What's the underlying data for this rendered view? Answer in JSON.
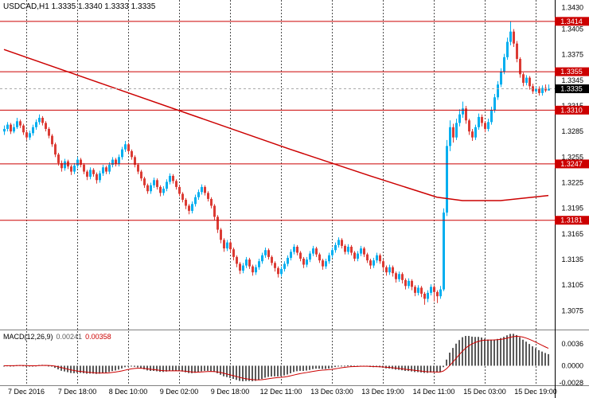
{
  "title": {
    "symbol": "USDCAD,H1",
    "values": "1.3335 1.3340 1.3333 1.3335"
  },
  "colors": {
    "up": "#00AEEF",
    "down": "#DB3B34",
    "line": "#CC0000",
    "grid": "#4d4d4d",
    "hist": "#5a5a5a",
    "separator": "#808080",
    "axis_line": "#000000",
    "bid_tag": "#000000",
    "bg": "#FFFFFF"
  },
  "chart_data": {
    "type": "candlestick",
    "title": "USDCAD,H1 1.3335 1.3340 1.3333 1.3335",
    "symbol": "USDCAD",
    "timeframe": "H1",
    "current_bar": {
      "open": 1.3335,
      "high": 1.334,
      "low": 1.3333,
      "close": 1.3335
    },
    "price_range": [
      1.3053,
      1.3439
    ],
    "y_ticks": [
      "1.3430",
      "1.3405",
      "1.3375",
      "1.3345",
      "1.3315",
      "1.3285",
      "1.3255",
      "1.3225",
      "1.3195",
      "1.3165",
      "1.3135",
      "1.3105",
      "1.3075"
    ],
    "x_axis": [
      {
        "label": "7 Dec 2016",
        "index": 7
      },
      {
        "label": "7 Dec 18:00",
        "index": 23
      },
      {
        "label": "8 Dec 10:00",
        "index": 39
      },
      {
        "label": "9 Dec 02:00",
        "index": 55
      },
      {
        "label": "9 Dec 18:00",
        "index": 71
      },
      {
        "label": "12 Dec 11:00",
        "index": 87
      },
      {
        "label": "13 Dec 03:00",
        "index": 103
      },
      {
        "label": "13 Dec 19:00",
        "index": 119
      },
      {
        "label": "14 Dec 11:00",
        "index": 135
      },
      {
        "label": "15 Dec 03:00",
        "index": 151
      },
      {
        "label": "15 Dec 19:00",
        "index": 167
      }
    ],
    "levels": [
      {
        "price": 1.3414,
        "label": "1.3414"
      },
      {
        "price": 1.3355,
        "label": "1.3355"
      },
      {
        "price": 1.331,
        "label": "1.3310"
      },
      {
        "price": 1.3247,
        "label": "1.3247"
      },
      {
        "price": 1.3181,
        "label": "1.3181"
      }
    ],
    "bid": {
      "price": 1.3335,
      "label": "1.3335"
    },
    "ma_line": {
      "points": [
        [
          0,
          1.3381
        ],
        [
          30,
          1.3342
        ],
        [
          60,
          1.3303
        ],
        [
          90,
          1.3264
        ],
        [
          115,
          1.3233
        ],
        [
          136,
          1.3208
        ],
        [
          144,
          1.3204
        ],
        [
          156,
          1.3204
        ],
        [
          171,
          1.321
        ]
      ]
    },
    "macd": {
      "name": "MACD(12,26,9)",
      "main_value": "0.00241",
      "signal_value": "0.00358",
      "fast": 12,
      "slow": 26,
      "signal": 9,
      "range": [
        -0.0032,
        0.0058
      ],
      "ticks": [
        {
          "value": 0.0036,
          "label": "0.0036"
        },
        {
          "value": 0.0,
          "label": "0.0000"
        },
        {
          "value": -0.0028,
          "label": "-0.0028"
        }
      ]
    },
    "candles": [
      [
        1.3285,
        1.3292,
        1.3281,
        1.3288
      ],
      [
        1.3288,
        1.3296,
        1.3285,
        1.3293
      ],
      [
        1.3293,
        1.3295,
        1.3282,
        1.3285
      ],
      [
        1.3285,
        1.3294,
        1.3283,
        1.329
      ],
      [
        1.329,
        1.3301,
        1.3288,
        1.3297
      ],
      [
        1.3297,
        1.3299,
        1.3289,
        1.3292
      ],
      [
        1.3292,
        1.3294,
        1.3281,
        1.3284
      ],
      [
        1.3284,
        1.3287,
        1.3275,
        1.3278
      ],
      [
        1.3278,
        1.3286,
        1.3275,
        1.3283
      ],
      [
        1.3283,
        1.3293,
        1.328,
        1.329
      ],
      [
        1.329,
        1.3299,
        1.3287,
        1.3296
      ],
      [
        1.3296,
        1.3305,
        1.3293,
        1.3301
      ],
      [
        1.3301,
        1.3303,
        1.3292,
        1.3295
      ],
      [
        1.3295,
        1.3297,
        1.3285,
        1.3288
      ],
      [
        1.3288,
        1.329,
        1.3277,
        1.328
      ],
      [
        1.328,
        1.3282,
        1.3267,
        1.327
      ],
      [
        1.327,
        1.3272,
        1.3255,
        1.3258
      ],
      [
        1.3258,
        1.326,
        1.3245,
        1.3248
      ],
      [
        1.3248,
        1.3251,
        1.3238,
        1.3242
      ],
      [
        1.3242,
        1.3253,
        1.3239,
        1.325
      ],
      [
        1.325,
        1.3252,
        1.3241,
        1.3244
      ],
      [
        1.3244,
        1.3246,
        1.3234,
        1.3238
      ],
      [
        1.3238,
        1.3248,
        1.3235,
        1.3245
      ],
      [
        1.3245,
        1.3255,
        1.3242,
        1.3252
      ],
      [
        1.3252,
        1.3254,
        1.3243,
        1.3246
      ],
      [
        1.3246,
        1.3248,
        1.3235,
        1.3238
      ],
      [
        1.3238,
        1.324,
        1.3228,
        1.3232
      ],
      [
        1.3232,
        1.3243,
        1.3229,
        1.324
      ],
      [
        1.324,
        1.3242,
        1.3232,
        1.3235
      ],
      [
        1.3235,
        1.3237,
        1.3224,
        1.3228
      ],
      [
        1.3228,
        1.3239,
        1.3225,
        1.3236
      ],
      [
        1.3236,
        1.3246,
        1.3233,
        1.3243
      ],
      [
        1.3243,
        1.3245,
        1.3235,
        1.3238
      ],
      [
        1.3238,
        1.3249,
        1.3235,
        1.3246
      ],
      [
        1.3246,
        1.3255,
        1.3243,
        1.3252
      ],
      [
        1.3252,
        1.3254,
        1.3244,
        1.3247
      ],
      [
        1.3247,
        1.3258,
        1.3244,
        1.3255
      ],
      [
        1.3255,
        1.3267,
        1.3252,
        1.3264
      ],
      [
        1.3264,
        1.3274,
        1.3261,
        1.327
      ],
      [
        1.327,
        1.3272,
        1.3259,
        1.3262
      ],
      [
        1.3262,
        1.3264,
        1.3252,
        1.3255
      ],
      [
        1.3255,
        1.3257,
        1.3243,
        1.3246
      ],
      [
        1.3246,
        1.3248,
        1.3235,
        1.3238
      ],
      [
        1.3238,
        1.324,
        1.3227,
        1.323
      ],
      [
        1.323,
        1.3232,
        1.3219,
        1.3222
      ],
      [
        1.3222,
        1.3224,
        1.3212,
        1.3215
      ],
      [
        1.3215,
        1.3225,
        1.3212,
        1.3222
      ],
      [
        1.3222,
        1.3231,
        1.3219,
        1.3228
      ],
      [
        1.3228,
        1.323,
        1.3217,
        1.322
      ],
      [
        1.322,
        1.3222,
        1.3209,
        1.3213
      ],
      [
        1.3213,
        1.3221,
        1.321,
        1.3218
      ],
      [
        1.3218,
        1.3229,
        1.3215,
        1.3226
      ],
      [
        1.3226,
        1.3236,
        1.3223,
        1.3233
      ],
      [
        1.3233,
        1.3235,
        1.3224,
        1.3227
      ],
      [
        1.3227,
        1.3229,
        1.3217,
        1.322
      ],
      [
        1.322,
        1.3222,
        1.3209,
        1.3212
      ],
      [
        1.3212,
        1.3214,
        1.3202,
        1.3205
      ],
      [
        1.3205,
        1.3207,
        1.3194,
        1.3198
      ],
      [
        1.3198,
        1.32,
        1.3188,
        1.3192
      ],
      [
        1.3192,
        1.3203,
        1.3189,
        1.32
      ],
      [
        1.32,
        1.3211,
        1.3197,
        1.3208
      ],
      [
        1.3208,
        1.3217,
        1.3205,
        1.3214
      ],
      [
        1.3214,
        1.3223,
        1.3211,
        1.322
      ],
      [
        1.322,
        1.3222,
        1.321,
        1.3213
      ],
      [
        1.3213,
        1.3215,
        1.3203,
        1.3206
      ],
      [
        1.3206,
        1.3208,
        1.3195,
        1.3198
      ],
      [
        1.3198,
        1.32,
        1.3181,
        1.3185
      ],
      [
        1.3185,
        1.3187,
        1.3166,
        1.317
      ],
      [
        1.317,
        1.3172,
        1.3154,
        1.3158
      ],
      [
        1.3158,
        1.316,
        1.3144,
        1.3148
      ],
      [
        1.3148,
        1.3158,
        1.3145,
        1.3155
      ],
      [
        1.3155,
        1.3157,
        1.3143,
        1.3147
      ],
      [
        1.3147,
        1.3149,
        1.3134,
        1.3138
      ],
      [
        1.3138,
        1.314,
        1.3126,
        1.313
      ],
      [
        1.313,
        1.3132,
        1.3118,
        1.3122
      ],
      [
        1.3122,
        1.3131,
        1.3119,
        1.3128
      ],
      [
        1.3128,
        1.3138,
        1.3125,
        1.3135
      ],
      [
        1.3135,
        1.3137,
        1.3124,
        1.3127
      ],
      [
        1.3127,
        1.3129,
        1.3116,
        1.312
      ],
      [
        1.312,
        1.3129,
        1.3117,
        1.3126
      ],
      [
        1.3126,
        1.3136,
        1.3123,
        1.3133
      ],
      [
        1.3133,
        1.3143,
        1.313,
        1.314
      ],
      [
        1.314,
        1.3149,
        1.3137,
        1.3146
      ],
      [
        1.3146,
        1.3148,
        1.3135,
        1.3138
      ],
      [
        1.3138,
        1.314,
        1.3128,
        1.3131
      ],
      [
        1.3131,
        1.3133,
        1.3121,
        1.3125
      ],
      [
        1.3125,
        1.3127,
        1.3114,
        1.3118
      ],
      [
        1.3118,
        1.3127,
        1.3115,
        1.3124
      ],
      [
        1.3124,
        1.3133,
        1.3121,
        1.313
      ],
      [
        1.313,
        1.314,
        1.3127,
        1.3137
      ],
      [
        1.3137,
        1.3147,
        1.3134,
        1.3144
      ],
      [
        1.3144,
        1.3153,
        1.3141,
        1.315
      ],
      [
        1.315,
        1.3152,
        1.314,
        1.3143
      ],
      [
        1.3143,
        1.3145,
        1.3133,
        1.3136
      ],
      [
        1.3136,
        1.3138,
        1.3125,
        1.3129
      ],
      [
        1.3129,
        1.3138,
        1.3126,
        1.3135
      ],
      [
        1.3135,
        1.3145,
        1.3132,
        1.3142
      ],
      [
        1.3142,
        1.3151,
        1.3139,
        1.3148
      ],
      [
        1.3148,
        1.315,
        1.3138,
        1.3141
      ],
      [
        1.3141,
        1.3143,
        1.3131,
        1.3134
      ],
      [
        1.3134,
        1.3136,
        1.3123,
        1.3127
      ],
      [
        1.3127,
        1.3136,
        1.3124,
        1.3133
      ],
      [
        1.3133,
        1.3143,
        1.313,
        1.314
      ],
      [
        1.314,
        1.3149,
        1.3137,
        1.3146
      ],
      [
        1.3146,
        1.3155,
        1.3143,
        1.3152
      ],
      [
        1.3152,
        1.3161,
        1.3149,
        1.3158
      ],
      [
        1.3158,
        1.316,
        1.3148,
        1.3151
      ],
      [
        1.3151,
        1.3153,
        1.3141,
        1.3144
      ],
      [
        1.3144,
        1.3153,
        1.3141,
        1.315
      ],
      [
        1.315,
        1.3152,
        1.314,
        1.3143
      ],
      [
        1.3143,
        1.3145,
        1.3133,
        1.3136
      ],
      [
        1.3136,
        1.3145,
        1.3133,
        1.3142
      ],
      [
        1.3142,
        1.3151,
        1.3139,
        1.3148
      ],
      [
        1.3148,
        1.315,
        1.3138,
        1.3141
      ],
      [
        1.3141,
        1.3143,
        1.3131,
        1.3134
      ],
      [
        1.3134,
        1.3136,
        1.3124,
        1.3128
      ],
      [
        1.3128,
        1.3137,
        1.3125,
        1.3134
      ],
      [
        1.3134,
        1.3143,
        1.3131,
        1.314
      ],
      [
        1.314,
        1.3142,
        1.313,
        1.3133
      ],
      [
        1.3133,
        1.3135,
        1.3122,
        1.3126
      ],
      [
        1.3126,
        1.3128,
        1.3116,
        1.312
      ],
      [
        1.312,
        1.3129,
        1.3117,
        1.3126
      ],
      [
        1.3126,
        1.3128,
        1.3115,
        1.3119
      ],
      [
        1.3119,
        1.3121,
        1.3108,
        1.3112
      ],
      [
        1.3112,
        1.3121,
        1.3109,
        1.3118
      ],
      [
        1.3118,
        1.312,
        1.3107,
        1.3111
      ],
      [
        1.3111,
        1.3113,
        1.31,
        1.3104
      ],
      [
        1.3104,
        1.3113,
        1.3101,
        1.311
      ],
      [
        1.311,
        1.3112,
        1.3099,
        1.3103
      ],
      [
        1.3103,
        1.3105,
        1.3092,
        1.3096
      ],
      [
        1.3096,
        1.3105,
        1.3093,
        1.3102
      ],
      [
        1.3102,
        1.3104,
        1.3091,
        1.3095
      ],
      [
        1.3095,
        1.3097,
        1.3082,
        1.3089
      ],
      [
        1.3089,
        1.3099,
        1.3085,
        1.3096
      ],
      [
        1.3096,
        1.3106,
        1.3093,
        1.3103
      ],
      [
        1.3103,
        1.3105,
        1.3086,
        1.3097
      ],
      [
        1.3097,
        1.3099,
        1.3084,
        1.3092
      ],
      [
        1.3092,
        1.3104,
        1.3089,
        1.31
      ],
      [
        1.31,
        1.3195,
        1.3098,
        1.319
      ],
      [
        1.319,
        1.3275,
        1.3186,
        1.3268
      ],
      [
        1.3268,
        1.3298,
        1.3262,
        1.329
      ],
      [
        1.329,
        1.3294,
        1.3272,
        1.3278
      ],
      [
        1.3278,
        1.33,
        1.3275,
        1.3295
      ],
      [
        1.3295,
        1.3311,
        1.3291,
        1.3305
      ],
      [
        1.3305,
        1.332,
        1.3301,
        1.3312
      ],
      [
        1.3312,
        1.3315,
        1.3294,
        1.3298
      ],
      [
        1.3298,
        1.33,
        1.3281,
        1.3285
      ],
      [
        1.3285,
        1.3288,
        1.3274,
        1.3278
      ],
      [
        1.3278,
        1.3293,
        1.3275,
        1.329
      ],
      [
        1.329,
        1.3306,
        1.3287,
        1.3302
      ],
      [
        1.3302,
        1.3305,
        1.3291,
        1.3295
      ],
      [
        1.3295,
        1.3297,
        1.3284,
        1.3288
      ],
      [
        1.3288,
        1.33,
        1.3285,
        1.3296
      ],
      [
        1.3296,
        1.3314,
        1.3293,
        1.331
      ],
      [
        1.331,
        1.3329,
        1.3307,
        1.3325
      ],
      [
        1.3325,
        1.3344,
        1.3322,
        1.334
      ],
      [
        1.334,
        1.3359,
        1.3337,
        1.3355
      ],
      [
        1.3355,
        1.3376,
        1.3352,
        1.3372
      ],
      [
        1.3372,
        1.3395,
        1.3369,
        1.339
      ],
      [
        1.339,
        1.3414,
        1.3386,
        1.3402
      ],
      [
        1.3402,
        1.3405,
        1.3384,
        1.3388
      ],
      [
        1.3388,
        1.3391,
        1.3366,
        1.337
      ],
      [
        1.337,
        1.3372,
        1.3348,
        1.3352
      ],
      [
        1.3352,
        1.3354,
        1.3338,
        1.3342
      ],
      [
        1.3342,
        1.3351,
        1.3339,
        1.3348
      ],
      [
        1.3348,
        1.335,
        1.3334,
        1.3338
      ],
      [
        1.3338,
        1.3341,
        1.3329,
        1.3332
      ],
      [
        1.3332,
        1.3338,
        1.333,
        1.3335
      ],
      [
        1.3335,
        1.3338,
        1.3327,
        1.333
      ],
      [
        1.333,
        1.3339,
        1.3327,
        1.3336
      ],
      [
        1.3336,
        1.334,
        1.3331,
        1.3333
      ],
      [
        1.3333,
        1.334,
        1.3333,
        1.3335
      ]
    ]
  }
}
